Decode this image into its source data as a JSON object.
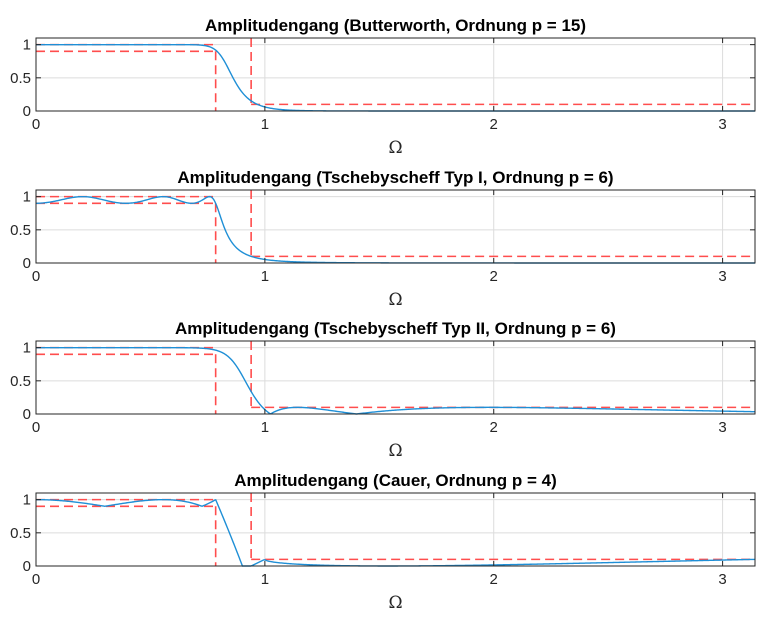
{
  "colors": {
    "response": "#1f8fd6",
    "tolerance": "#ff4d4d",
    "grid": "#dcdcdc",
    "axis": "#262626"
  },
  "chart_data": [
    {
      "type": "line",
      "filter": "butterworth",
      "title": "Amplitudengang (Butterworth, Ordnung p = 15)",
      "xlabel": "Ω",
      "ylabel": "",
      "xlim": [
        0,
        3.1416
      ],
      "ylim": [
        0,
        1.1
      ],
      "xticks": [
        0,
        1,
        2,
        3
      ],
      "yticks": [
        0,
        0.5,
        1
      ],
      "grid": true,
      "order": 15,
      "wp": 0.785,
      "ws": 0.94,
      "pass_band": [
        0.9,
        1.0
      ],
      "stop_level": 0.1
    },
    {
      "type": "line",
      "filter": "cheby1",
      "title": "Amplitudengang (Tschebyscheff Typ I, Ordnung p = 6)",
      "xlabel": "Ω",
      "ylabel": "",
      "xlim": [
        0,
        3.1416
      ],
      "ylim": [
        0,
        1.1
      ],
      "xticks": [
        0,
        1,
        2,
        3
      ],
      "yticks": [
        0,
        0.5,
        1
      ],
      "grid": true,
      "order": 6,
      "wp": 0.785,
      "ws": 0.94,
      "pass_band": [
        0.9,
        1.0
      ],
      "stop_level": 0.1
    },
    {
      "type": "line",
      "filter": "cheby2",
      "title": "Amplitudengang (Tschebyscheff Typ II, Ordnung p = 6)",
      "xlabel": "Ω",
      "ylabel": "",
      "xlim": [
        0,
        3.1416
      ],
      "ylim": [
        0,
        1.1
      ],
      "xticks": [
        0,
        1,
        2,
        3
      ],
      "yticks": [
        0,
        0.5,
        1
      ],
      "grid": true,
      "order": 6,
      "wp": 0.785,
      "ws": 0.94,
      "pass_band": [
        0.9,
        1.0
      ],
      "stop_level": 0.1
    },
    {
      "type": "line",
      "filter": "cauer",
      "title": "Amplitudengang (Cauer, Ordnung p = 4)",
      "xlabel": "Ω",
      "ylabel": "",
      "xlim": [
        0,
        3.1416
      ],
      "ylim": [
        0,
        1.1
      ],
      "xticks": [
        0,
        1,
        2,
        3
      ],
      "yticks": [
        0,
        0.5,
        1
      ],
      "grid": true,
      "order": 4,
      "wp": 0.785,
      "ws": 0.94,
      "pass_band": [
        0.9,
        1.0
      ],
      "stop_level": 0.1
    }
  ]
}
